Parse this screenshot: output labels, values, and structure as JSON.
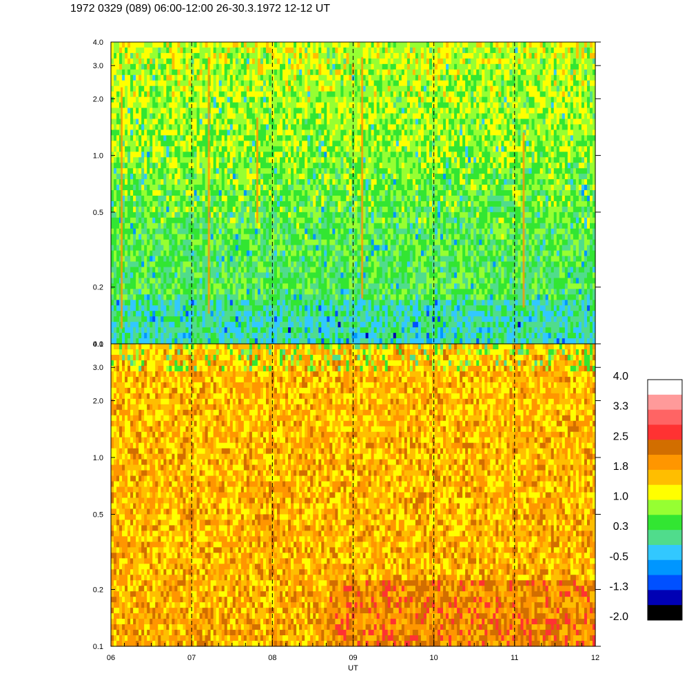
{
  "header": {
    "title": "1972 0329 (089) 06:00-12:00 26-30.3.1972  12-12 UT"
  },
  "chart_data": {
    "type": "heatmap",
    "title": "1972 0329 (089) 06:00-12:00 26-30.3.1972  12-12 UT",
    "xlabel": "UT",
    "x_ticks": [
      "06",
      "07",
      "08",
      "09",
      "10",
      "11",
      "12"
    ],
    "x_range": [
      6,
      12
    ],
    "y_scale": "log",
    "dashed_vlines": [
      7,
      8,
      9,
      10,
      11
    ],
    "panels": [
      {
        "name": "upper",
        "y_range": [
          0.1,
          4.0
        ],
        "y_ticks": [
          "0.1",
          "0.2",
          "0.5",
          "1.0",
          "2.0",
          "3.0",
          "4.0"
        ],
        "dominant_levels": "green to cyan (approx. 0.0 to 1.0), with scattered orange streaks near 1.8-2.5"
      },
      {
        "name": "lower",
        "y_range": [
          0.1,
          4.0
        ],
        "y_ticks": [
          "0.1",
          "0.2",
          "0.5",
          "1.0",
          "2.0",
          "3.0",
          "4.0"
        ],
        "dominant_levels": "yellow to orange (approx. 1.0 to 2.2), darker orange below 0.2 after 08 UT"
      }
    ],
    "colorbar": {
      "tick_labels": [
        "4.0",
        "3.3",
        "2.5",
        "1.8",
        "1.0",
        "0.3",
        "-0.5",
        "-1.3",
        "-2.0"
      ],
      "colors_top_to_bottom": [
        "#ffffff",
        "#ff9a9a",
        "#ff6464",
        "#ff3232",
        "#d26e00",
        "#ff9600",
        "#ffbe00",
        "#ffff00",
        "#96ff32",
        "#32e632",
        "#50dc8c",
        "#32c8ff",
        "#0096ff",
        "#0050ff",
        "#0000b4",
        "#000000"
      ]
    }
  }
}
